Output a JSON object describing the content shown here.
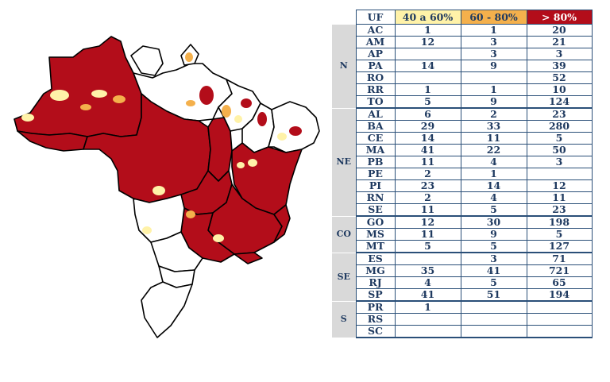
{
  "legend": {
    "uf_header": "UF",
    "band1": "40 a 60%",
    "band2": "60 - 80%",
    "band3": "> 80%"
  },
  "colors": {
    "band1": "#fff2a8",
    "band2": "#f4b04c",
    "band3": "#b30d1a",
    "none": "#ffffff",
    "border": "#000000",
    "header_gray": "#d9d9d9"
  },
  "regions": [
    {
      "name": "N",
      "rows": [
        {
          "uf": "AC",
          "b1": "1",
          "b2": "1",
          "b3": "20"
        },
        {
          "uf": "AM",
          "b1": "12",
          "b2": "3",
          "b3": "21"
        },
        {
          "uf": "AP",
          "b1": "",
          "b2": "3",
          "b3": "3"
        },
        {
          "uf": "PA",
          "b1": "14",
          "b2": "9",
          "b3": "39"
        },
        {
          "uf": "RO",
          "b1": "",
          "b2": "",
          "b3": "52"
        },
        {
          "uf": "RR",
          "b1": "1",
          "b2": "1",
          "b3": "10"
        },
        {
          "uf": "TO",
          "b1": "5",
          "b2": "9",
          "b3": "124"
        }
      ]
    },
    {
      "name": "NE",
      "rows": [
        {
          "uf": "AL",
          "b1": "6",
          "b2": "2",
          "b3": "23"
        },
        {
          "uf": "BA",
          "b1": "29",
          "b2": "33",
          "b3": "280"
        },
        {
          "uf": "CE",
          "b1": "14",
          "b2": "11",
          "b3": "5"
        },
        {
          "uf": "MA",
          "b1": "41",
          "b2": "22",
          "b3": "50"
        },
        {
          "uf": "PB",
          "b1": "11",
          "b2": "4",
          "b3": "3"
        },
        {
          "uf": "PE",
          "b1": "2",
          "b2": "1",
          "b3": ""
        },
        {
          "uf": "PI",
          "b1": "23",
          "b2": "14",
          "b3": "12"
        },
        {
          "uf": "RN",
          "b1": "2",
          "b2": "4",
          "b3": "11"
        },
        {
          "uf": "SE",
          "b1": "11",
          "b2": "5",
          "b3": "23"
        }
      ]
    },
    {
      "name": "CO",
      "rows": [
        {
          "uf": "GO",
          "b1": "12",
          "b2": "30",
          "b3": "198"
        },
        {
          "uf": "MS",
          "b1": "11",
          "b2": "9",
          "b3": "5"
        },
        {
          "uf": "MT",
          "b1": "5",
          "b2": "5",
          "b3": "127"
        }
      ]
    },
    {
      "name": "SE",
      "rows": [
        {
          "uf": "ES",
          "b1": "",
          "b2": "3",
          "b3": "71"
        },
        {
          "uf": "MG",
          "b1": "35",
          "b2": "41",
          "b3": "721"
        },
        {
          "uf": "RJ",
          "b1": "4",
          "b2": "5",
          "b3": "65"
        },
        {
          "uf": "SP",
          "b1": "41",
          "b2": "51",
          "b3": "194"
        }
      ]
    },
    {
      "name": "S",
      "rows": [
        {
          "uf": "PR",
          "b1": "1",
          "b2": "",
          "b3": ""
        },
        {
          "uf": "RS",
          "b1": "",
          "b2": "",
          "b3": ""
        },
        {
          "uf": "SC",
          "b1": "",
          "b2": "",
          "b3": ""
        }
      ]
    }
  ]
}
